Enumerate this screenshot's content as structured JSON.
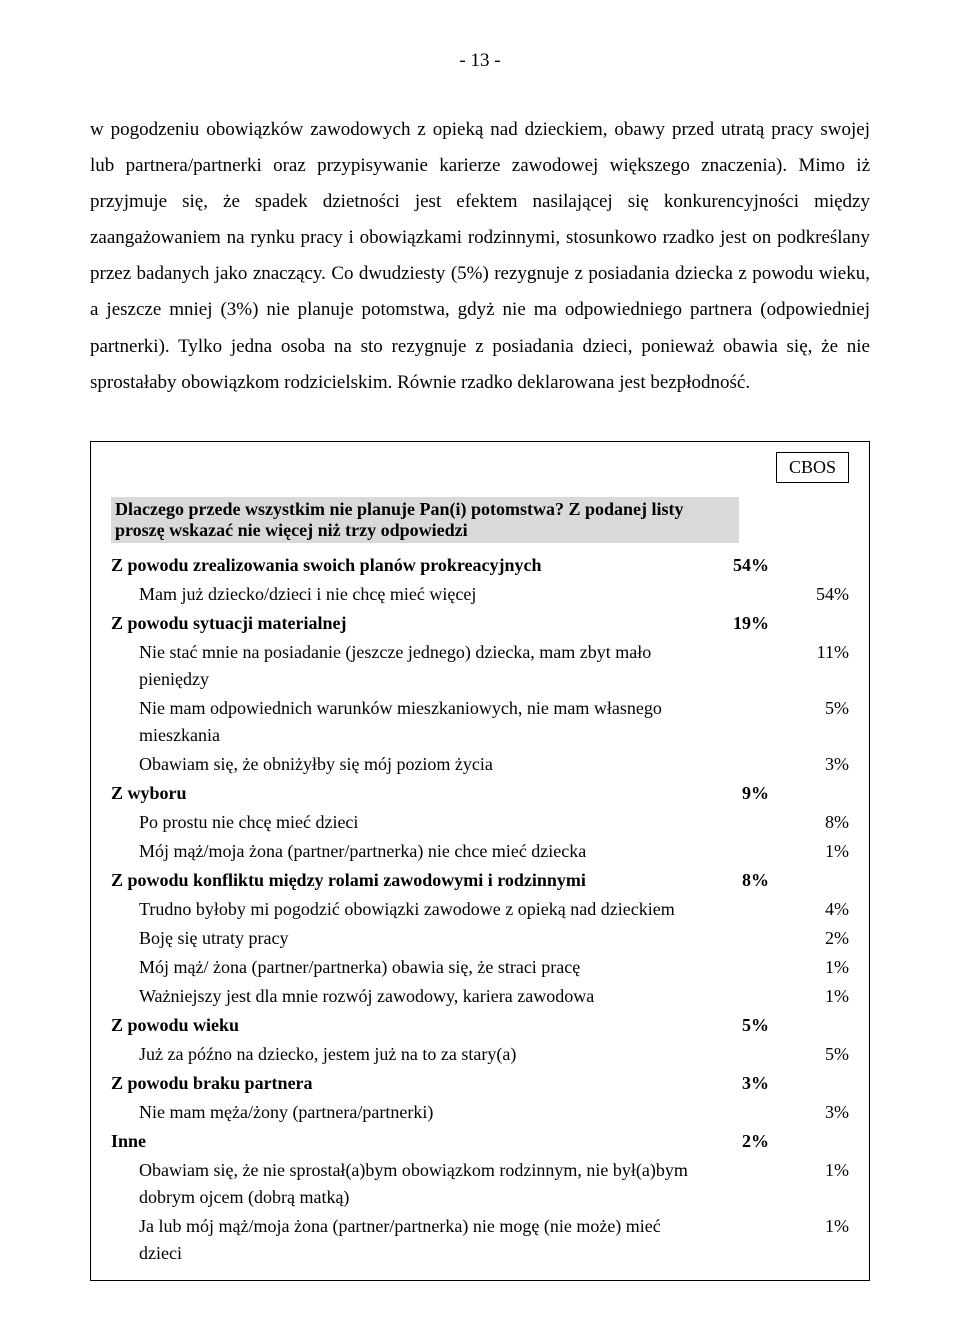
{
  "page_number": "- 13 -",
  "paragraph": "w pogodzeniu obowiązków zawodowych z opieką nad dzieckiem, obawy przed utratą pracy swojej lub partnera/partnerki oraz przypisywanie karierze zawodowej większego znaczenia). Mimo iż przyjmuje się, że spadek dzietności jest efektem nasilającej się konkurencyjności między zaangażowaniem na rynku pracy i obowiązkami rodzinnymi, stosunkowo rzadko jest on podkreślany przez badanych jako znaczący. Co dwudziesty (5%) rezygnuje z posiadania dziecka z powodu wieku, a jeszcze mniej (3%) nie planuje potomstwa, gdyż nie ma odpowiedniego partnera (odpowiedniej partnerki). Tylko jedna osoba na sto rezygnuje z posiadania dzieci, ponieważ obawia się, że nie sprostałaby obowiązkom rodzicielskim. Równie rzadko deklarowana jest bezpłodność.",
  "cbos_label": "CBOS",
  "question": "Dlaczego przede wszystkim nie planuje Pan(i) potomstwa? Z podanej listy proszę wskazać nie więcej niż trzy odpowiedzi",
  "rows": [
    {
      "type": "cat",
      "label": "Z powodu zrealizowania swoich planów prokreacyjnych",
      "col1": "54%",
      "col2": ""
    },
    {
      "type": "sub",
      "label": "Mam już dziecko/dzieci i nie chcę mieć więcej",
      "col1": "",
      "col2": "54%"
    },
    {
      "type": "cat",
      "label": "Z powodu sytuacji materialnej",
      "col1": "19%",
      "col2": ""
    },
    {
      "type": "sub",
      "label": "Nie stać mnie na posiadanie (jeszcze jednego) dziecka, mam zbyt mało pieniędzy",
      "col1": "",
      "col2": "11%"
    },
    {
      "type": "sub",
      "label": "Nie mam odpowiednich warunków mieszkaniowych, nie mam własnego mieszkania",
      "col1": "",
      "col2": "5%"
    },
    {
      "type": "sub",
      "label": "Obawiam się, że obniżyłby się mój poziom życia",
      "col1": "",
      "col2": "3%"
    },
    {
      "type": "cat",
      "label": "Z wyboru",
      "col1": "9%",
      "col2": ""
    },
    {
      "type": "sub",
      "label": "Po prostu nie chcę mieć dzieci",
      "col1": "",
      "col2": "8%"
    },
    {
      "type": "sub",
      "label": "Mój mąż/moja żona (partner/partnerka) nie chce mieć dziecka",
      "col1": "",
      "col2": "1%"
    },
    {
      "type": "cat",
      "label": "Z powodu konfliktu między rolami zawodowymi i rodzinnymi",
      "col1": "8%",
      "col2": ""
    },
    {
      "type": "sub",
      "label": "Trudno byłoby mi pogodzić obowiązki zawodowe z opieką nad dzieckiem",
      "col1": "",
      "col2": "4%"
    },
    {
      "type": "sub",
      "label": "Boję się utraty pracy",
      "col1": "",
      "col2": "2%"
    },
    {
      "type": "sub",
      "label": "Mój mąż/ żona (partner/partnerka) obawia się, że straci pracę",
      "col1": "",
      "col2": "1%"
    },
    {
      "type": "sub",
      "label": "Ważniejszy jest dla mnie rozwój zawodowy, kariera zawodowa",
      "col1": "",
      "col2": "1%"
    },
    {
      "type": "cat",
      "label": "Z powodu wieku",
      "col1": "5%",
      "col2": ""
    },
    {
      "type": "sub",
      "label": "Już za późno na dziecko, jestem już na to za stary(a)",
      "col1": "",
      "col2": "5%"
    },
    {
      "type": "cat",
      "label": "Z powodu braku partnera",
      "col1": "3%",
      "col2": ""
    },
    {
      "type": "sub",
      "label": "Nie mam męża/żony (partnera/partnerki)",
      "col1": "",
      "col2": "3%"
    },
    {
      "type": "cat",
      "label": "Inne",
      "col1": "2%",
      "col2": ""
    },
    {
      "type": "sub",
      "label": "Obawiam się, że nie sprostał(a)bym obowiązkom rodzinnym, nie był(a)bym dobrym ojcem (dobrą matką)",
      "col1": "",
      "col2": "1%"
    },
    {
      "type": "sub",
      "label": "Ja lub mój mąż/moja żona (partner/partnerka) nie mogę (nie może) mieć dzieci",
      "col1": "",
      "col2": "1%"
    }
  ]
}
